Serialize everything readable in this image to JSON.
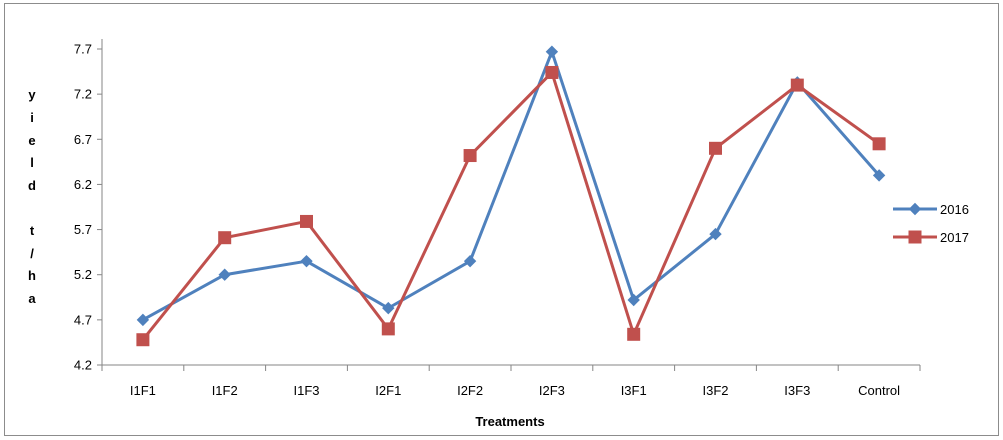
{
  "chart_data": {
    "type": "line",
    "categories": [
      "I1F1",
      "I1F2",
      "I1F3",
      "I2F1",
      "I2F2",
      "I2F3",
      "I3F1",
      "I3F2",
      "I3F3",
      "Control"
    ],
    "series": [
      {
        "name": "2016",
        "color": "#4f81bd",
        "marker": "diamond",
        "values": [
          4.7,
          5.2,
          5.35,
          4.83,
          5.35,
          7.67,
          4.92,
          5.65,
          7.33,
          6.3
        ]
      },
      {
        "name": "2017",
        "color": "#c0504d",
        "marker": "square",
        "values": [
          4.48,
          5.61,
          5.79,
          4.6,
          6.52,
          7.44,
          4.54,
          6.6,
          7.3,
          6.65
        ]
      }
    ],
    "yticks": [
      "4.2",
      "4.7",
      "5.2",
      "5.7",
      "6.2",
      "6.7",
      "7.2",
      "7.7"
    ],
    "ylim": [
      4.2,
      7.7
    ],
    "xlabel": "Treatments",
    "ylabel_chars": [
      "y",
      "i",
      "e",
      "l",
      "d",
      "",
      "t",
      "/",
      "h",
      "a"
    ],
    "legend_position": "right",
    "grid": false
  }
}
